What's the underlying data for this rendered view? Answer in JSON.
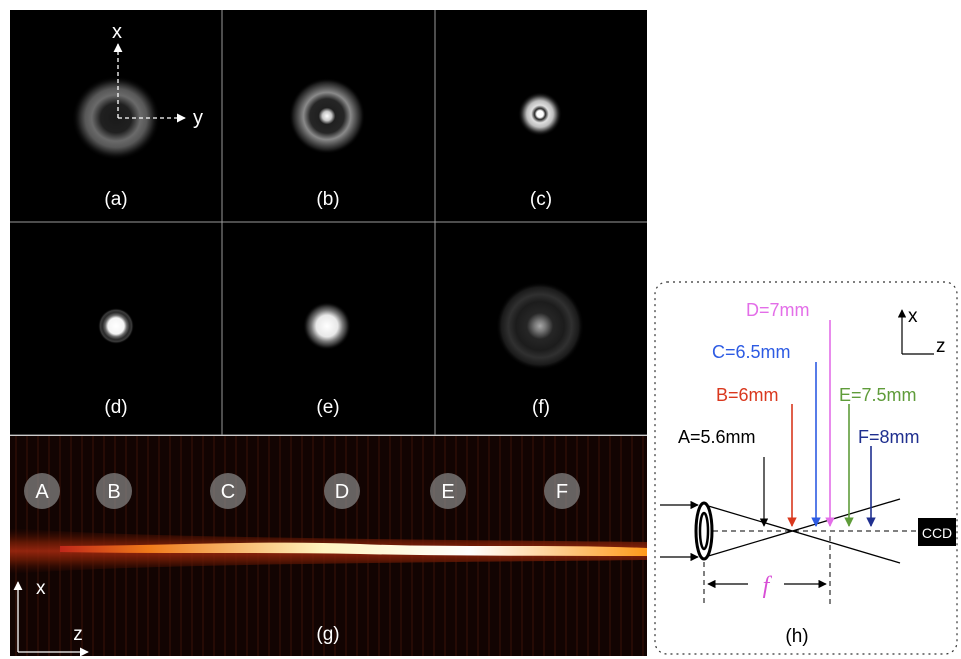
{
  "panels": {
    "a": {
      "label": "(a)",
      "axis_x": "x",
      "axis_y": "y"
    },
    "b": {
      "label": "(b)"
    },
    "c": {
      "label": "(c)"
    },
    "d": {
      "label": "(d)"
    },
    "e": {
      "label": "(e)"
    },
    "f": {
      "label": "(f)"
    },
    "g": {
      "label": "(g)",
      "axis_x": "x",
      "axis_z": "z",
      "markers": [
        "A",
        "B",
        "C",
        "D",
        "E",
        "F"
      ]
    },
    "h": {
      "label": "(h)",
      "axis_x": "x",
      "axis_z": "z",
      "positions": {
        "A": "A=5.6mm",
        "B": "B=6mm",
        "C": "C=6.5mm",
        "D": "D=7mm",
        "E": "E=7.5mm",
        "F": "F=8mm"
      },
      "focal_symbol": "f",
      "detector": "CCD",
      "colors": {
        "A": "#000000",
        "B": "#d9381e",
        "C": "#2d5be3",
        "D": "#e36ee8",
        "E": "#5f9c3a",
        "F": "#1f2f8f",
        "focal": "#d84fd6"
      }
    }
  }
}
